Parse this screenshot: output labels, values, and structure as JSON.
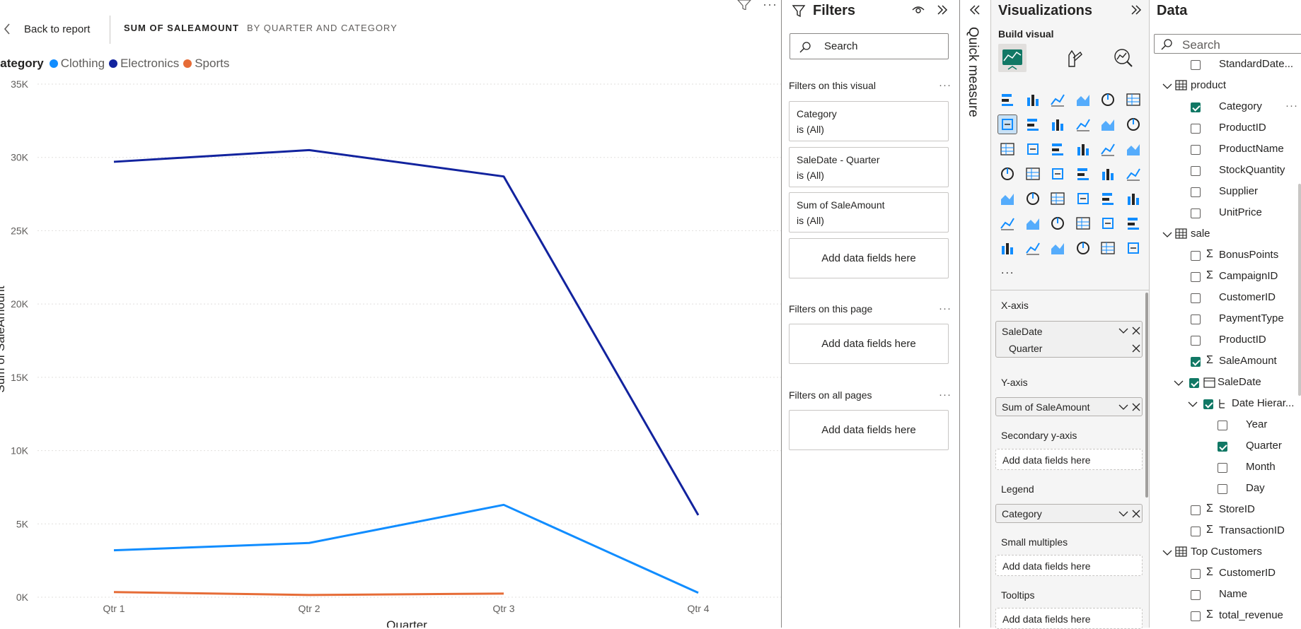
{
  "report": {
    "back_label": "Back to report",
    "tab_title": "SUM OF SALEAMOUNT",
    "tab_subtitle": "BY QUARTER AND CATEGORY"
  },
  "chart_data": {
    "type": "line",
    "legend_title": "Category",
    "legend_position": "top-left",
    "categories": [
      "Qtr 1",
      "Qtr 2",
      "Qtr 3",
      "Qtr 4"
    ],
    "series": [
      {
        "name": "Clothing",
        "color": "#118dff",
        "values": [
          3200,
          3700,
          6300,
          300
        ]
      },
      {
        "name": "Electronics",
        "color": "#12239e",
        "values": [
          29700,
          30500,
          28700,
          5600
        ]
      },
      {
        "name": "Sports",
        "color": "#e66c37",
        "values": [
          350,
          150,
          250,
          null
        ]
      }
    ],
    "y_ticks": [
      "0K",
      "5K",
      "10K",
      "15K",
      "20K",
      "25K",
      "30K",
      "35K"
    ],
    "ylim": [
      0,
      35000
    ],
    "xlabel": "Quarter",
    "ylabel": "Sum of SaleAmount",
    "grid": true
  },
  "filters": {
    "title": "Filters",
    "search_placeholder": "Search",
    "on_visual_label": "Filters on this visual",
    "visual_cards": [
      {
        "field": "Category",
        "state": "is (All)"
      },
      {
        "field": "SaleDate - Quarter",
        "state": "is (All)"
      },
      {
        "field": "Sum of SaleAmount",
        "state": "is (All)"
      }
    ],
    "add_fields": "Add data fields here",
    "on_page_label": "Filters on this page",
    "on_all_label": "Filters on all pages"
  },
  "quick_measure": "Quick measure",
  "viz": {
    "title": "Visualizations",
    "build_visual": "Build visual",
    "more": "...",
    "wells": {
      "xaxis_label": "X-axis",
      "xaxis_field": "SaleDate",
      "xaxis_sub": "Quarter",
      "yaxis_label": "Y-axis",
      "yaxis_field": "Sum of SaleAmount",
      "secondary_label": "Secondary y-axis",
      "legend_label": "Legend",
      "legend_field": "Category",
      "small_multiples_label": "Small multiples",
      "tooltips_label": "Tooltips",
      "add_fields": "Add data fields here"
    }
  },
  "data": {
    "title": "Data",
    "search_placeholder": "Search",
    "items": [
      {
        "label": "StandardDate...",
        "checked": false,
        "sigma": false
      },
      {
        "label": "product",
        "table": true
      },
      {
        "label": "Category",
        "checked": true,
        "sigma": false
      },
      {
        "label": "ProductID",
        "checked": false,
        "sigma": false
      },
      {
        "label": "ProductName",
        "checked": false,
        "sigma": false
      },
      {
        "label": "StockQuantity",
        "checked": false,
        "sigma": false
      },
      {
        "label": "Supplier",
        "checked": false,
        "sigma": false
      },
      {
        "label": "UnitPrice",
        "checked": false,
        "sigma": false
      },
      {
        "label": "sale",
        "table": true
      },
      {
        "label": "BonusPoints",
        "checked": false,
        "sigma": true
      },
      {
        "label": "CampaignID",
        "checked": false,
        "sigma": true
      },
      {
        "label": "CustomerID",
        "checked": false,
        "sigma": false
      },
      {
        "label": "PaymentType",
        "checked": false,
        "sigma": false
      },
      {
        "label": "ProductID",
        "checked": false,
        "sigma": false
      },
      {
        "label": "SaleAmount",
        "checked": true,
        "sigma": true
      },
      {
        "label": "SaleDate",
        "checked": true,
        "sigma": false
      },
      {
        "label": "Date Hierar...",
        "checked": true,
        "sigma": false
      },
      {
        "label": "Year",
        "checked": false,
        "sigma": false
      },
      {
        "label": "Quarter",
        "checked": true,
        "sigma": false
      },
      {
        "label": "Month",
        "checked": false,
        "sigma": false
      },
      {
        "label": "Day",
        "checked": false,
        "sigma": false
      },
      {
        "label": "StoreID",
        "checked": false,
        "sigma": true
      },
      {
        "label": "TransactionID",
        "checked": false,
        "sigma": true
      },
      {
        "label": "Top Customers",
        "table": true
      },
      {
        "label": "CustomerID",
        "checked": false,
        "sigma": true
      },
      {
        "label": "Name",
        "checked": false,
        "sigma": false
      },
      {
        "label": "total_revenue",
        "checked": false,
        "sigma": true
      }
    ]
  },
  "colors": {
    "accent": "#117865",
    "electronics": "#12239e",
    "clothing": "#118dff",
    "sports": "#e66c37"
  }
}
